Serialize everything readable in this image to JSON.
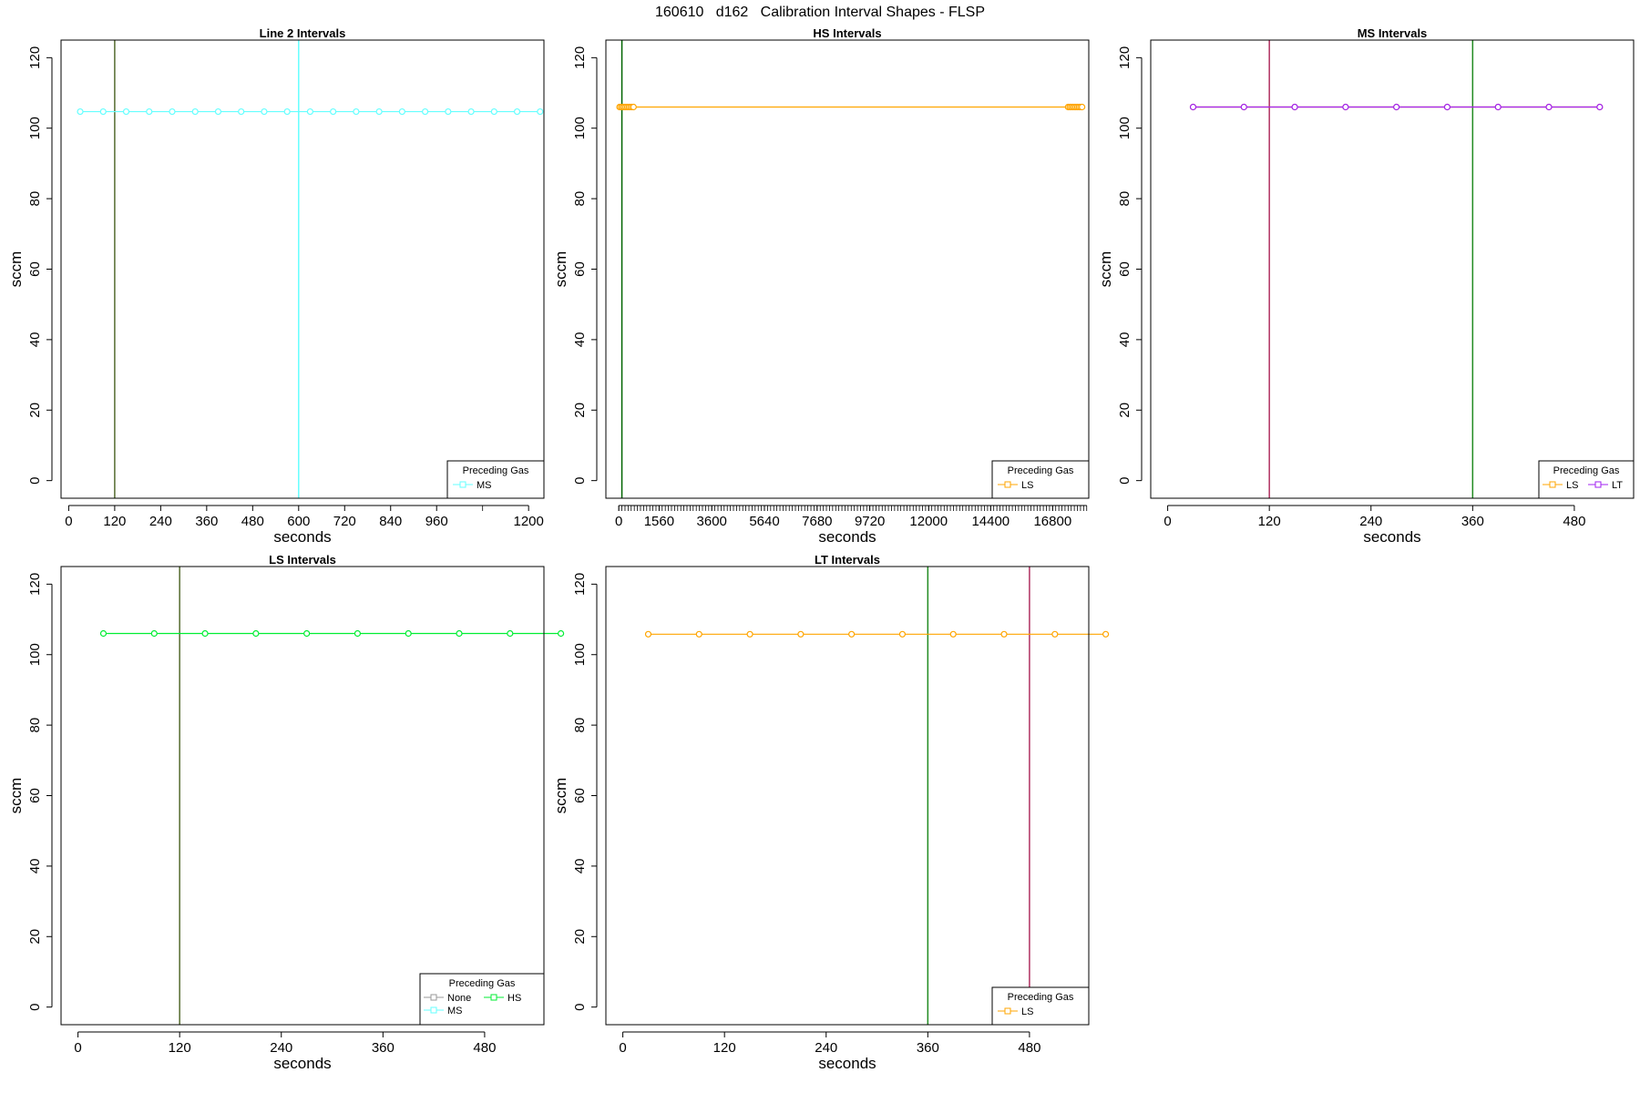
{
  "page_title": "160610   d162   Calibration Interval Shapes - FLSP",
  "chart_data": [
    {
      "type": "line",
      "title": "Line 2 Intervals",
      "xlabel": "seconds",
      "ylabel": "sccm",
      "xlim": [
        -20,
        1240
      ],
      "ylim": [
        -5,
        125
      ],
      "xticks": [
        0,
        120,
        240,
        360,
        480,
        600,
        720,
        840,
        960,
        1200
      ],
      "xtick_minor": [
        1080
      ],
      "yticks": [
        0,
        20,
        40,
        60,
        80,
        100,
        120
      ],
      "series": [
        {
          "name": "MS",
          "color": "#66ffff",
          "x": [
            30,
            90,
            150,
            210,
            270,
            330,
            390,
            450,
            510,
            570,
            630,
            690,
            750,
            810,
            870,
            930,
            990,
            1050,
            1110,
            1170,
            1230
          ],
          "y": [
            104.7,
            104.7,
            104.7,
            104.7,
            104.7,
            104.7,
            104.7,
            104.7,
            104.7,
            104.7,
            104.7,
            104.7,
            104.7,
            104.7,
            104.7,
            104.7,
            104.7,
            104.7,
            104.7,
            104.7,
            104.7
          ]
        }
      ],
      "vlines": [
        {
          "x": 120,
          "color": "#556b2f"
        },
        {
          "x": 600,
          "color": "#66ffff"
        }
      ],
      "legend": {
        "title": "Preceding Gas",
        "placement": "bottom-right",
        "items": [
          {
            "label": "MS",
            "color": "#66ffff"
          }
        ]
      }
    },
    {
      "type": "line",
      "title": "HS Intervals",
      "xlabel": "seconds",
      "ylabel": "sccm",
      "xlim": [
        -500,
        18200
      ],
      "ylim": [
        -5,
        125
      ],
      "xticks": [
        0,
        1560,
        3600,
        5640,
        7680,
        9720,
        12000,
        14400,
        16800
      ],
      "xtick_minor_every": 120,
      "yticks": [
        0,
        20,
        40,
        60,
        80,
        100,
        120
      ],
      "series": [
        {
          "name": "LS",
          "color": "#ffa500",
          "x": [
            30,
            90,
            150,
            210,
            270,
            330,
            390,
            450,
            510,
            570,
            17400,
            17460,
            17520,
            17580,
            17640,
            17700,
            17760,
            17820,
            17880,
            17940
          ],
          "y": [
            106,
            106,
            106,
            106,
            106,
            106,
            106,
            106,
            106,
            106,
            106,
            106,
            106,
            106,
            106,
            106,
            106,
            106,
            106,
            106
          ]
        }
      ],
      "vlines": [
        {
          "x": 120,
          "color": "#006400"
        }
      ],
      "legend": {
        "title": "Preceding Gas",
        "placement": "bottom-right",
        "items": [
          {
            "label": "LS",
            "color": "#ffa500"
          }
        ]
      }
    },
    {
      "type": "line",
      "title": "MS Intervals",
      "xlabel": "seconds",
      "ylabel": "sccm",
      "xlim": [
        -20,
        550
      ],
      "ylim": [
        -5,
        125
      ],
      "xticks": [
        0,
        120,
        240,
        360,
        480
      ],
      "yticks": [
        0,
        20,
        40,
        60,
        80,
        100,
        120
      ],
      "series": [
        {
          "name": "LS",
          "color": "#ffa500",
          "x": [
            30,
            90,
            150,
            210,
            270,
            330,
            390,
            450,
            510
          ],
          "y": [
            106,
            106,
            106,
            106,
            106,
            106,
            106,
            106,
            106
          ]
        },
        {
          "name": "LT",
          "color": "#a020f0",
          "x": [
            30,
            90,
            150,
            210,
            270,
            330,
            390,
            450,
            510
          ],
          "y": [
            106,
            106,
            106,
            106,
            106,
            106,
            106,
            106,
            106
          ]
        }
      ],
      "vlines": [
        {
          "x": 120,
          "color": "#b03060"
        },
        {
          "x": 360,
          "color": "#228b22"
        }
      ],
      "legend": {
        "title": "Preceding Gas",
        "placement": "bottom-right",
        "items": [
          {
            "label": "LS",
            "color": "#ffa500"
          },
          {
            "label": "LT",
            "color": "#a020f0"
          }
        ]
      }
    },
    {
      "type": "line",
      "title": "LS Intervals",
      "xlabel": "seconds",
      "ylabel": "sccm",
      "xlim": [
        -20,
        550
      ],
      "ylim": [
        -5,
        125
      ],
      "xticks": [
        0,
        120,
        240,
        360,
        480
      ],
      "yticks": [
        0,
        20,
        40,
        60,
        80,
        100,
        120
      ],
      "series": [
        {
          "name": "HS",
          "color": "#00ee33",
          "x": [
            30,
            90,
            150,
            210,
            270,
            330,
            390,
            450,
            510,
            570
          ],
          "y": [
            106,
            106,
            106,
            106,
            106,
            106,
            106,
            106,
            106,
            106
          ]
        }
      ],
      "vlines": [
        {
          "x": 120,
          "color": "#556b2f"
        }
      ],
      "legend": {
        "title": "Preceding Gas",
        "placement": "bottom-right",
        "items": [
          {
            "label": "None",
            "color": "#999999"
          },
          {
            "label": "HS",
            "color": "#00ee33"
          },
          {
            "label": "MS",
            "color": "#66ffff"
          }
        ]
      }
    },
    {
      "type": "line",
      "title": "LT Intervals",
      "xlabel": "seconds",
      "ylabel": "sccm",
      "xlim": [
        -20,
        550
      ],
      "ylim": [
        -5,
        125
      ],
      "xticks": [
        0,
        120,
        240,
        360,
        480
      ],
      "yticks": [
        0,
        20,
        40,
        60,
        80,
        100,
        120
      ],
      "series": [
        {
          "name": "LS",
          "color": "#ffa500",
          "x": [
            30,
            90,
            150,
            210,
            270,
            330,
            390,
            450,
            510,
            570
          ],
          "y": [
            105.8,
            105.8,
            105.8,
            105.8,
            105.8,
            105.8,
            105.8,
            105.8,
            105.8,
            105.8
          ]
        }
      ],
      "vlines": [
        {
          "x": 360,
          "color": "#228b22"
        },
        {
          "x": 480,
          "color": "#b03060"
        }
      ],
      "legend": {
        "title": "Preceding Gas",
        "placement": "bottom-right",
        "items": [
          {
            "label": "LS",
            "color": "#ffa500"
          }
        ]
      }
    }
  ]
}
